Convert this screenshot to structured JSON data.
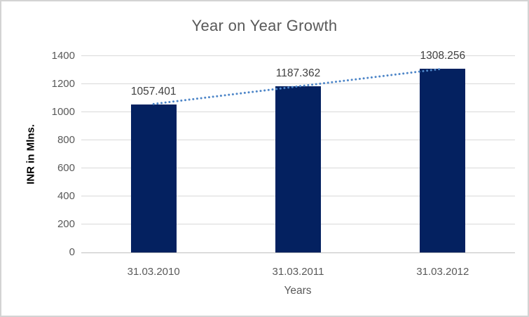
{
  "chart": {
    "title": "Year on Year Growth",
    "x_axis_title": "Years",
    "y_axis_title": "INR in Mlns."
  },
  "chart_data": {
    "type": "bar",
    "title": "Year on Year Growth",
    "categories": [
      "31.03.2010",
      "31.03.2011",
      "31.03.2012"
    ],
    "values": [
      1057.401,
      1187.362,
      1308.256
    ],
    "data_labels": [
      "1057.401",
      "1187.362",
      "1308.256"
    ],
    "xlabel": "Years",
    "ylabel": "INR in Mlns.",
    "ylim": [
      0,
      1400
    ],
    "yticks": [
      0,
      200,
      400,
      600,
      800,
      1000,
      1200,
      1400
    ],
    "grid": true,
    "legend": false,
    "trendline": {
      "type": "linear",
      "style": "dotted",
      "color": "#4E86C8",
      "spans": "first-bar-center-to-last-bar-center"
    },
    "colors": {
      "bar": "#042160",
      "trendline": "#4E86C8",
      "gridline": "#D9D9D9",
      "axis_line": "#BFBFBF",
      "title_text": "#595959",
      "tick_text": "#595959",
      "data_label_text": "#3F3F3F",
      "y_axis_title_text": "#000000",
      "border": "#D3D3D3",
      "background": "#FFFFFF"
    }
  }
}
